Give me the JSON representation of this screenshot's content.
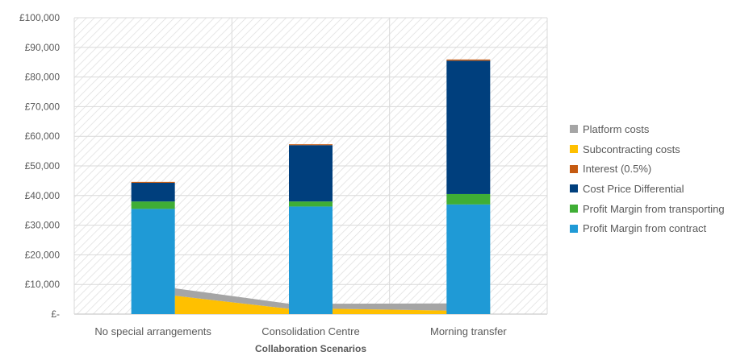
{
  "chart_data": {
    "type": "bar",
    "stacked": true,
    "xlabel": "Collaboration Scenarios",
    "ylabel": "",
    "ylim": [
      0,
      100000
    ],
    "yticks": [
      0,
      10000,
      20000,
      30000,
      40000,
      50000,
      60000,
      70000,
      80000,
      90000,
      100000
    ],
    "ytick_labels": [
      "£-",
      "£10,000",
      "£20,000",
      "£30,000",
      "£40,000",
      "£50,000",
      "£60,000",
      "£70,000",
      "£80,000",
      "£90,000",
      "£100,000"
    ],
    "categories": [
      "No special arrangements",
      "Consolidation Centre",
      "Morning transfer"
    ],
    "grid": true,
    "legend_position": "right",
    "bar_series": [
      {
        "name": "Profit Margin from contract",
        "color": "#1f9ad6",
        "values": [
          35500,
          36300,
          37000
        ]
      },
      {
        "name": "Profit Margin from transporting",
        "color": "#3fae35",
        "values": [
          2500,
          1700,
          3500
        ]
      },
      {
        "name": "Cost Price Differential",
        "color": "#003f7d",
        "values": [
          6300,
          19000,
          45000
        ]
      },
      {
        "name": "Interest (0.5%)",
        "color": "#c55a11",
        "values": [
          300,
          300,
          400
        ]
      }
    ],
    "area_series": [
      {
        "name": "Subcontracting costs",
        "color": "#ffc000",
        "values": [
          6200,
          1800,
          1200
        ]
      },
      {
        "name": "Platform costs",
        "color": "#a5a5a5",
        "values": [
          2500,
          1700,
          2400
        ]
      }
    ],
    "legend": [
      {
        "name": "Platform costs",
        "color": "#a5a5a5"
      },
      {
        "name": "Subcontracting costs",
        "color": "#ffc000"
      },
      {
        "name": "Interest (0.5%)",
        "color": "#c55a11"
      },
      {
        "name": "Cost Price Differential",
        "color": "#003f7d"
      },
      {
        "name": "Profit Margin from transporting",
        "color": "#3fae35"
      },
      {
        "name": "Profit Margin from contract",
        "color": "#1f9ad6"
      }
    ]
  }
}
